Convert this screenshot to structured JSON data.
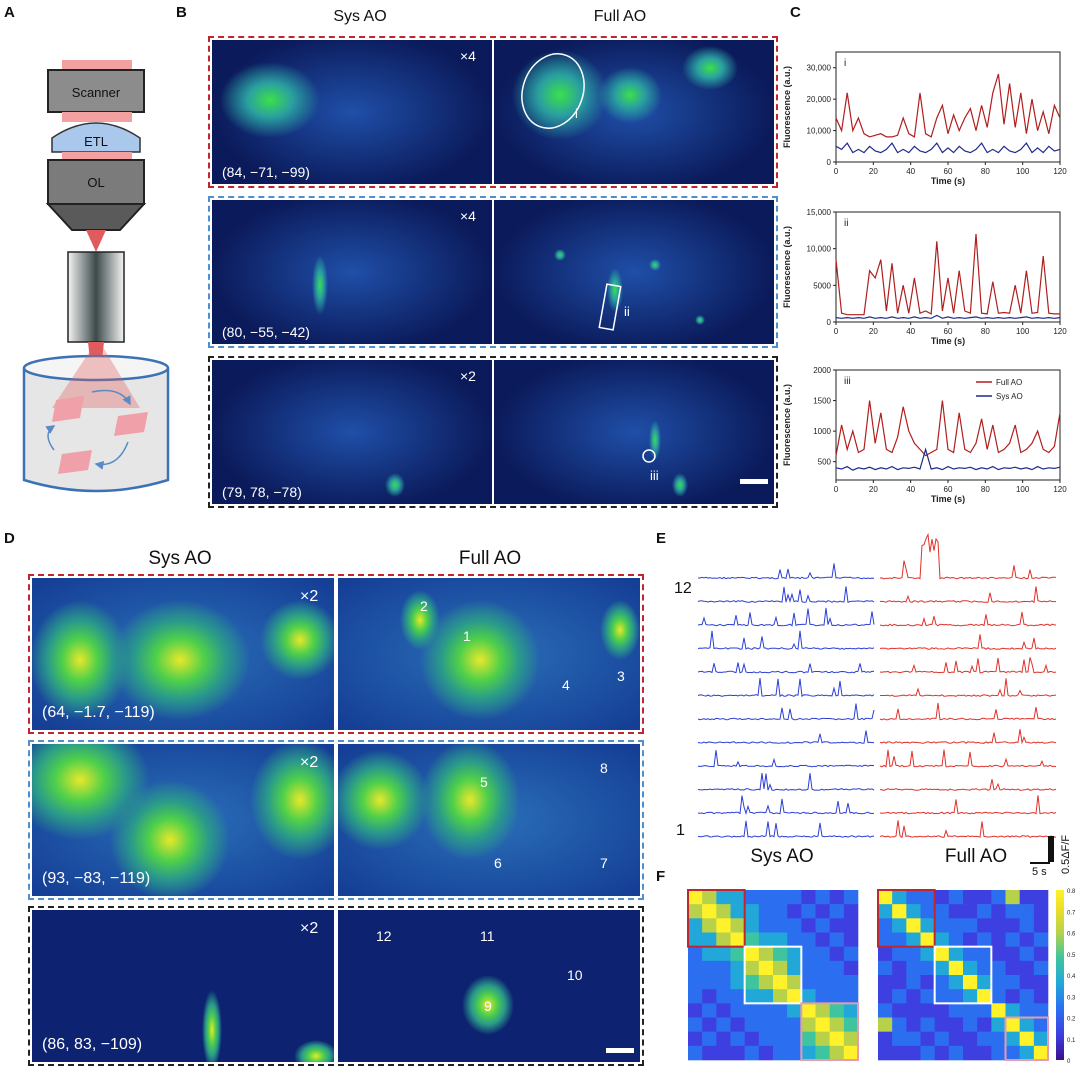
{
  "panels": {
    "A": {
      "letter": "A",
      "labels": {
        "scanner": "Scanner",
        "etl": "ETL",
        "ol": "OL"
      }
    },
    "B": {
      "letter": "B",
      "columns": [
        "Sys AO",
        "Full AO"
      ],
      "rows": [
        {
          "zoom": "×4",
          "coords": "(84, −71, −99)",
          "roi": "i"
        },
        {
          "zoom": "×4",
          "coords": "(80, −55, −42)",
          "roi": "ii"
        },
        {
          "zoom": "×2",
          "coords": "(79, 78, −78)",
          "roi": "iii"
        }
      ]
    },
    "C": {
      "letter": "C"
    },
    "D": {
      "letter": "D",
      "columns": [
        "Sys AO",
        "Full AO"
      ],
      "rows": [
        {
          "zoom": "×2",
          "coords": "(64, −1.7, −119)",
          "cells": [
            "1",
            "2",
            "3",
            "4"
          ]
        },
        {
          "zoom": "×2",
          "coords": "(93, −83, −119)",
          "cells": [
            "5",
            "6",
            "7",
            "8"
          ]
        },
        {
          "zoom": "×2",
          "coords": "(86, 83, −109)",
          "cells": [
            "9",
            "10",
            "11",
            "12"
          ]
        }
      ]
    },
    "E": {
      "letter": "E",
      "top_label": "12",
      "bottom_label": "1",
      "scale_y": "0.5ΔF/F",
      "scale_x": "5 s"
    },
    "F": {
      "letter": "F",
      "titles": [
        "Sys AO",
        "Full AO"
      ],
      "colorbar_ticks": [
        "0.8",
        "0.7",
        "0.6",
        "0.5",
        "0.4",
        "0.3",
        "0.2",
        "0.1",
        "0"
      ]
    }
  },
  "colors": {
    "full_ao": "#b01e1e",
    "sys_ao": "#1e2a8c",
    "box_red": "#c0262d",
    "box_blue": "#4e8fd0",
    "box_black": "#222222",
    "box_pink": "#e59bb0",
    "trace_blue": "#2b3fd6",
    "trace_red": "#e0312b"
  },
  "chart_data": [
    {
      "type": "line",
      "id": "C-i",
      "roi": "i",
      "xlabel": "Time (s)",
      "ylabel": "Fluorescence (a.u.)",
      "xlim": [
        0,
        120
      ],
      "ylim": [
        0,
        35000
      ],
      "xticks": [
        "0",
        "20",
        "40",
        "60",
        "80",
        "100",
        "120"
      ],
      "yticks": [
        "0",
        "10,000",
        "20,000",
        "30,000"
      ],
      "x": [
        0,
        3,
        6,
        9,
        12,
        15,
        18,
        21,
        24,
        27,
        30,
        33,
        36,
        39,
        42,
        45,
        48,
        51,
        54,
        57,
        60,
        63,
        66,
        69,
        72,
        75,
        78,
        81,
        84,
        87,
        90,
        93,
        96,
        99,
        102,
        105,
        108,
        111,
        114,
        117,
        120
      ],
      "series": [
        {
          "name": "Full AO",
          "values": [
            14000,
            10000,
            22000,
            10000,
            14000,
            9000,
            8000,
            8500,
            9000,
            8000,
            8000,
            8500,
            14000,
            9000,
            8000,
            22000,
            9000,
            8000,
            14000,
            18000,
            9000,
            15000,
            10000,
            14000,
            17000,
            10000,
            18000,
            11000,
            22000,
            28000,
            12000,
            25000,
            11000,
            22000,
            9000,
            20000,
            10000,
            16000,
            9000,
            18000,
            14000
          ]
        },
        {
          "name": "Sys AO",
          "values": [
            5000,
            4000,
            6000,
            3000,
            4000,
            3000,
            5000,
            3500,
            3000,
            4000,
            6000,
            3000,
            4000,
            3000,
            5000,
            3500,
            3000,
            4000,
            6000,
            3000,
            4500,
            3000,
            5000,
            3500,
            3000,
            4000,
            6000,
            3000,
            4000,
            3000,
            5000,
            3500,
            3000,
            4000,
            6000,
            3000,
            4500,
            3000,
            5000,
            3500,
            4000
          ]
        }
      ]
    },
    {
      "type": "line",
      "id": "C-ii",
      "roi": "ii",
      "xlabel": "Time (s)",
      "ylabel": "Fluorescence (a.u.)",
      "xlim": [
        0,
        120
      ],
      "ylim": [
        0,
        15000
      ],
      "xticks": [
        "0",
        "20",
        "40",
        "60",
        "80",
        "100",
        "120"
      ],
      "yticks": [
        "0",
        "5000",
        "10,000",
        "15,000"
      ],
      "x": [
        0,
        3,
        6,
        9,
        12,
        15,
        18,
        21,
        24,
        27,
        30,
        33,
        36,
        39,
        42,
        45,
        48,
        51,
        54,
        57,
        60,
        63,
        66,
        69,
        72,
        75,
        78,
        81,
        84,
        87,
        90,
        93,
        96,
        99,
        102,
        105,
        108,
        111,
        114,
        117,
        120
      ],
      "series": [
        {
          "name": "Full AO",
          "values": [
            8500,
            1200,
            1000,
            1000,
            1000,
            1000,
            7000,
            6000,
            8500,
            1500,
            8000,
            1200,
            5000,
            1200,
            6000,
            1200,
            1500,
            1100,
            11000,
            1500,
            6000,
            1200,
            7000,
            1500,
            1200,
            12000,
            1200,
            1100,
            5500,
            1200,
            1300,
            1200,
            5000,
            1200,
            7000,
            1200,
            1300,
            9000,
            1200,
            1100,
            1100
          ]
        },
        {
          "name": "Sys AO",
          "values": [
            600,
            500,
            600,
            500,
            600,
            500,
            700,
            500,
            600,
            500,
            700,
            500,
            600,
            500,
            700,
            500,
            600,
            500,
            900,
            500,
            700,
            500,
            600,
            500,
            600,
            700,
            500,
            600,
            500,
            600,
            500,
            600,
            500,
            600,
            700,
            500,
            600,
            500,
            600,
            500,
            600
          ]
        }
      ]
    },
    {
      "type": "line",
      "id": "C-iii",
      "roi": "iii",
      "xlabel": "Time (s)",
      "ylabel": "Fluorescence (a.u.)",
      "xlim": [
        0,
        120
      ],
      "ylim": [
        200,
        2000
      ],
      "xticks": [
        "0",
        "20",
        "40",
        "60",
        "80",
        "100",
        "120"
      ],
      "yticks": [
        "500",
        "1000",
        "1500",
        "2000"
      ],
      "legend": "top-right",
      "x": [
        0,
        3,
        6,
        9,
        12,
        15,
        18,
        21,
        24,
        27,
        30,
        33,
        36,
        39,
        42,
        45,
        48,
        51,
        54,
        57,
        60,
        63,
        66,
        69,
        72,
        75,
        78,
        81,
        84,
        87,
        90,
        93,
        96,
        99,
        102,
        105,
        108,
        111,
        114,
        117,
        120
      ],
      "series": [
        {
          "name": "Full AO",
          "values": [
            600,
            1100,
            700,
            1000,
            650,
            700,
            1500,
            800,
            1300,
            700,
            650,
            900,
            1400,
            1000,
            800,
            700,
            600,
            650,
            700,
            1500,
            700,
            650,
            1300,
            700,
            650,
            800,
            1200,
            700,
            1100,
            650,
            700,
            800,
            1100,
            650,
            700,
            800,
            1000,
            700,
            650,
            750,
            1300
          ]
        },
        {
          "name": "Sys AO",
          "values": [
            400,
            380,
            420,
            360,
            400,
            380,
            410,
            370,
            400,
            380,
            420,
            370,
            400,
            390,
            410,
            380,
            700,
            380,
            400,
            370,
            420,
            380,
            400,
            390,
            410,
            370,
            400,
            380,
            420,
            370,
            400,
            390,
            410,
            380,
            400,
            370,
            420,
            380,
            400,
            390,
            410
          ]
        }
      ]
    },
    {
      "type": "heatmap",
      "id": "F-sys",
      "title": "Sys AO",
      "values": [
        [
          0.8,
          0.55,
          0.3,
          0.25,
          0.2,
          0.2,
          0.15,
          0.15,
          0.1,
          0.15,
          0.1,
          0.15
        ],
        [
          0.55,
          0.8,
          0.5,
          0.3,
          0.25,
          0.2,
          0.15,
          0.1,
          0.15,
          0.1,
          0.15,
          0.1
        ],
        [
          0.3,
          0.5,
          0.8,
          0.5,
          0.3,
          0.2,
          0.2,
          0.15,
          0.1,
          0.15,
          0.1,
          0.1
        ],
        [
          0.25,
          0.3,
          0.5,
          0.8,
          0.45,
          0.35,
          0.25,
          0.2,
          0.15,
          0.1,
          0.15,
          0.1
        ],
        [
          0.2,
          0.25,
          0.3,
          0.45,
          0.8,
          0.55,
          0.4,
          0.3,
          0.15,
          0.15,
          0.1,
          0.15
        ],
        [
          0.2,
          0.2,
          0.2,
          0.35,
          0.55,
          0.8,
          0.6,
          0.35,
          0.2,
          0.15,
          0.15,
          0.1
        ],
        [
          0.15,
          0.15,
          0.2,
          0.25,
          0.4,
          0.6,
          0.8,
          0.5,
          0.2,
          0.2,
          0.15,
          0.15
        ],
        [
          0.15,
          0.1,
          0.15,
          0.2,
          0.3,
          0.35,
          0.5,
          0.8,
          0.25,
          0.2,
          0.2,
          0.15
        ],
        [
          0.1,
          0.15,
          0.1,
          0.15,
          0.15,
          0.2,
          0.2,
          0.25,
          0.8,
          0.55,
          0.4,
          0.3
        ],
        [
          0.15,
          0.1,
          0.15,
          0.1,
          0.15,
          0.15,
          0.2,
          0.2,
          0.55,
          0.8,
          0.55,
          0.45
        ],
        [
          0.1,
          0.15,
          0.1,
          0.15,
          0.1,
          0.15,
          0.15,
          0.2,
          0.4,
          0.55,
          0.8,
          0.6
        ],
        [
          0.15,
          0.1,
          0.1,
          0.1,
          0.15,
          0.1,
          0.15,
          0.15,
          0.3,
          0.45,
          0.6,
          0.8
        ]
      ]
    },
    {
      "type": "heatmap",
      "id": "F-full",
      "title": "Full AO",
      "values": [
        [
          0.8,
          0.3,
          0.15,
          0.15,
          0.1,
          0.15,
          0.1,
          0.1,
          0.15,
          0.55,
          0.1,
          0.1
        ],
        [
          0.3,
          0.8,
          0.3,
          0.15,
          0.15,
          0.1,
          0.1,
          0.15,
          0.1,
          0.15,
          0.15,
          0.1
        ],
        [
          0.15,
          0.3,
          0.8,
          0.3,
          0.15,
          0.15,
          0.15,
          0.1,
          0.1,
          0.1,
          0.15,
          0.1
        ],
        [
          0.15,
          0.15,
          0.3,
          0.8,
          0.3,
          0.15,
          0.1,
          0.15,
          0.1,
          0.15,
          0.1,
          0.15
        ],
        [
          0.1,
          0.15,
          0.15,
          0.3,
          0.8,
          0.3,
          0.2,
          0.15,
          0.1,
          0.1,
          0.15,
          0.1
        ],
        [
          0.15,
          0.1,
          0.15,
          0.15,
          0.3,
          0.8,
          0.3,
          0.2,
          0.15,
          0.1,
          0.1,
          0.15
        ],
        [
          0.1,
          0.1,
          0.15,
          0.1,
          0.2,
          0.3,
          0.8,
          0.3,
          0.15,
          0.15,
          0.1,
          0.1
        ],
        [
          0.1,
          0.15,
          0.1,
          0.15,
          0.15,
          0.2,
          0.3,
          0.8,
          0.15,
          0.1,
          0.15,
          0.1
        ],
        [
          0.15,
          0.1,
          0.1,
          0.1,
          0.1,
          0.15,
          0.15,
          0.15,
          0.8,
          0.3,
          0.2,
          0.15
        ],
        [
          0.55,
          0.15,
          0.1,
          0.15,
          0.1,
          0.1,
          0.15,
          0.1,
          0.3,
          0.8,
          0.3,
          0.2
        ],
        [
          0.1,
          0.15,
          0.15,
          0.1,
          0.15,
          0.1,
          0.1,
          0.15,
          0.2,
          0.3,
          0.8,
          0.3
        ],
        [
          0.1,
          0.1,
          0.1,
          0.15,
          0.1,
          0.15,
          0.1,
          0.1,
          0.15,
          0.2,
          0.3,
          0.8
        ]
      ]
    }
  ]
}
